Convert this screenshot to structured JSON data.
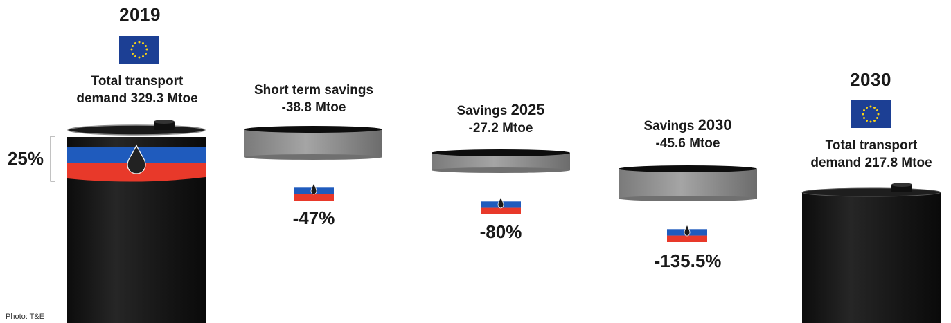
{
  "panels": {
    "start": {
      "year": "2019",
      "label_line1": "Total transport",
      "label_line2": "demand 329.3 Mtoe",
      "share_label": "25%",
      "flag_icon": "eu-flag-icon",
      "russian_oil_share_percent": 25
    },
    "short_term": {
      "label_line1": "Short term savings",
      "label_line2": "-38.8 Mtoe",
      "percent": "-47%",
      "flag_icon": "russia-flag-oil-drop-icon"
    },
    "savings_2025": {
      "label_prefix": "Savings ",
      "label_year": "2025",
      "label_line2": "-27.2 Mtoe",
      "percent": "-80%",
      "flag_icon": "russia-flag-oil-drop-icon"
    },
    "savings_2030": {
      "label_prefix": "Savings ",
      "label_year": "2030",
      "label_line2": "-45.6 Mtoe",
      "percent": "-135.5%",
      "flag_icon": "russia-flag-oil-drop-icon"
    },
    "end": {
      "year": "2030",
      "label_line1": "Total transport",
      "label_line2": "demand 217.8 Mtoe",
      "flag_icon": "eu-flag-icon"
    }
  },
  "caption": "Photo: T&E",
  "colors": {
    "barrel": "#151515",
    "disc": "#8c8c8c",
    "eu_blue": "#1c3f94",
    "eu_star": "#f7d117",
    "ru_blue": "#1f5bbd",
    "ru_red": "#e8392a",
    "ru_white": "#ffffff"
  }
}
